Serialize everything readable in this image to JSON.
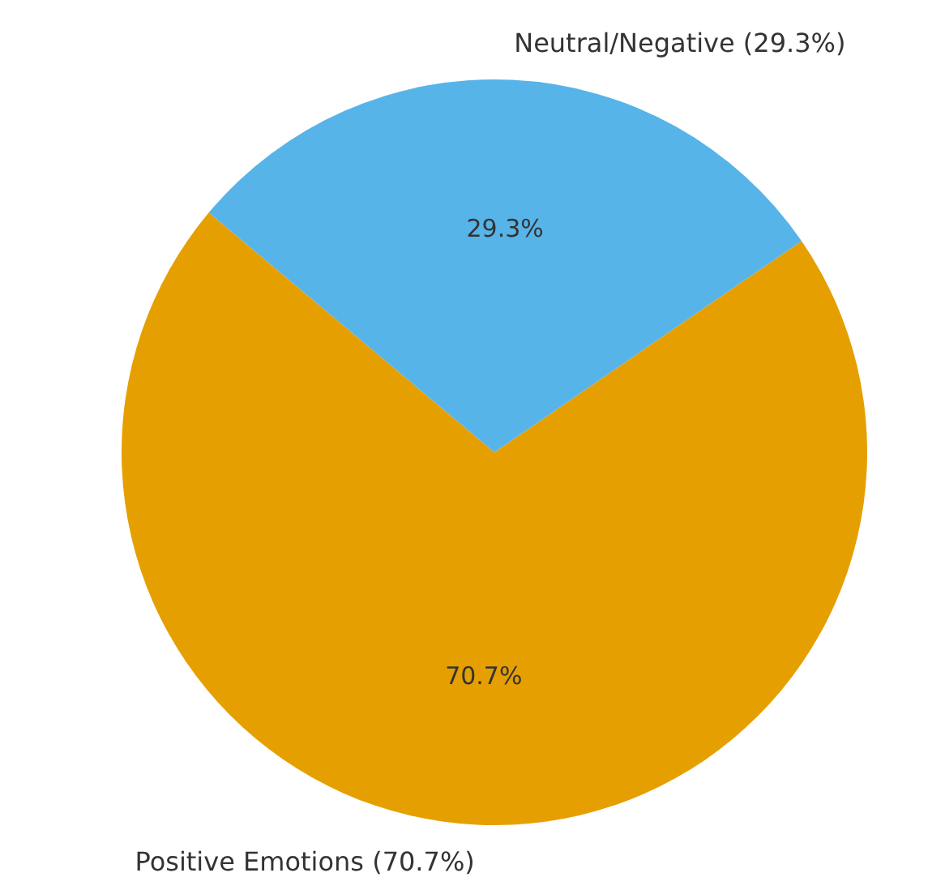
{
  "chart_data": {
    "type": "pie",
    "categories": [
      "Positive Emotions (70.7%)",
      "Neutral/Negative (29.3%)"
    ],
    "values": [
      70.7,
      29.3
    ],
    "colors": [
      "#e69f00",
      "#56b4e9"
    ],
    "value_labels": [
      "70.7%",
      "29.3%"
    ]
  }
}
